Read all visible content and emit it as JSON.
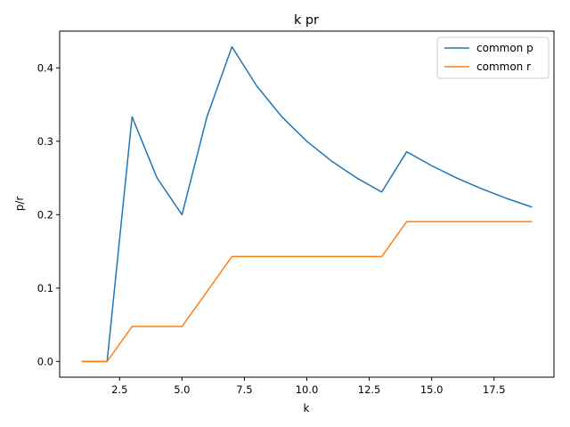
{
  "chart_data": {
    "type": "line",
    "title": "k pr",
    "xlabel": "k",
    "ylabel": "p/r",
    "xlim": [
      0.1,
      19.9
    ],
    "ylim": [
      -0.0214,
      0.45
    ],
    "xticks": [
      2.5,
      5.0,
      7.5,
      10.0,
      12.5,
      15.0,
      17.5
    ],
    "xtick_labels": [
      "2.5",
      "5.0",
      "7.5",
      "10.0",
      "12.5",
      "15.0",
      "17.5"
    ],
    "yticks": [
      0.0,
      0.1,
      0.2,
      0.3,
      0.4
    ],
    "ytick_labels": [
      "0.0",
      "0.1",
      "0.2",
      "0.3",
      "0.4"
    ],
    "grid": false,
    "legend": "top-right",
    "x": [
      1,
      2,
      3,
      4,
      5,
      6,
      7,
      8,
      9,
      10,
      11,
      12,
      13,
      14,
      15,
      16,
      17,
      18,
      19
    ],
    "series": [
      {
        "name": "common p",
        "color": "#1f77b4",
        "values": [
          0.0,
          0.0,
          0.3333,
          0.25,
          0.2,
          0.3333,
          0.4286,
          0.375,
          0.3333,
          0.3,
          0.2727,
          0.25,
          0.2308,
          0.2857,
          0.2667,
          0.25,
          0.2353,
          0.2222,
          0.2105
        ]
      },
      {
        "name": "common r",
        "color": "#ff7f0e",
        "values": [
          0.0,
          0.0,
          0.0476,
          0.0476,
          0.0476,
          0.0952,
          0.1429,
          0.1429,
          0.1429,
          0.1429,
          0.1429,
          0.1429,
          0.1429,
          0.1905,
          0.1905,
          0.1905,
          0.1905,
          0.1905,
          0.1905
        ]
      }
    ]
  }
}
